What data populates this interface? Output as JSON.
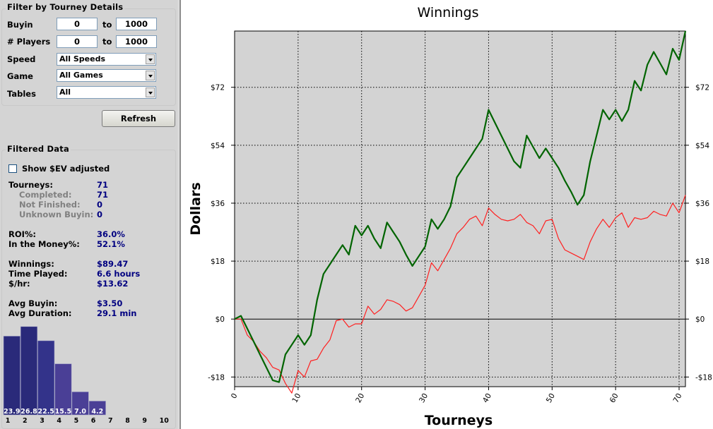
{
  "filter": {
    "title": "Filter by Tourney Details",
    "buyin_label": "Buyin",
    "buyin_min": "0",
    "buyin_max": "1000",
    "players_label": "# Players",
    "players_min": "0",
    "players_max": "1000",
    "to_label": "to",
    "speed_label": "Speed",
    "speed_value": "All Speeds",
    "game_label": "Game",
    "game_value": "All Games",
    "tables_label": "Tables",
    "tables_value": "All",
    "refresh_label": "Refresh"
  },
  "filtered": {
    "title": "Filtered Data",
    "ev_label": "Show $EV adjusted",
    "ev_checked": false,
    "stats": [
      {
        "label": "Tourneys:",
        "value": "71",
        "sub": false
      },
      {
        "label": "Completed:",
        "value": "71",
        "sub": true
      },
      {
        "label": "Not Finished:",
        "value": "0",
        "sub": true
      },
      {
        "label": "Unknown Buyin:",
        "value": "0",
        "sub": true
      },
      {
        "label": "ROI%:",
        "value": "36.0%",
        "sub": false
      },
      {
        "label": "In the Money%:",
        "value": "52.1%",
        "sub": false
      },
      {
        "label": "Winnings:",
        "value": "$89.47",
        "sub": false
      },
      {
        "label": "Time Played:",
        "value": "6.6  hours",
        "sub": false
      },
      {
        "label": "$/hr:",
        "value": "$13.62",
        "sub": false
      },
      {
        "label": "Avg Buyin:",
        "value": "$3.50",
        "sub": false
      },
      {
        "label": "Avg Duration:",
        "value": "29.1  min",
        "sub": false
      }
    ]
  },
  "histogram": {
    "places": [
      "1",
      "2",
      "3",
      "4",
      "5",
      "6",
      "7",
      "8",
      "9",
      "10"
    ],
    "values": [
      23.9,
      26.8,
      22.5,
      15.5,
      7.0,
      4.2,
      0,
      0,
      0,
      0
    ],
    "labels": [
      "23.9",
      "26.8",
      "22.5",
      "15.5",
      "7.0",
      "4.2",
      "",
      "",
      "",
      ""
    ],
    "colors": [
      "#2a2a7a",
      "#2a2a7a",
      "#33338a",
      "#4a3f96",
      "#4a3f96",
      "#4a3f96"
    ]
  },
  "chart_data": {
    "type": "line",
    "title": "Winnings",
    "xlabel": "Tourneys",
    "ylabel": "Dollars",
    "xlim": [
      0,
      71
    ],
    "ylim": [
      -21,
      89.47
    ],
    "xticks": [
      0,
      10,
      20,
      30,
      40,
      50,
      60,
      70
    ],
    "yticks": [
      -18,
      0,
      18,
      36,
      54,
      72
    ],
    "ytick_labels": [
      "-$18",
      "$0",
      "$18",
      "$36",
      "$54",
      "$72"
    ],
    "grid": true,
    "background": "#d3d3d3",
    "series": [
      {
        "color": "#006400",
        "values": [
          0,
          1,
          -3,
          -7,
          -11,
          -15,
          -19,
          -19.6,
          -11,
          -8,
          -5,
          -8,
          -5,
          6,
          14,
          17,
          20,
          23,
          20,
          29,
          26,
          29,
          25,
          22,
          30,
          27,
          24,
          20,
          16.5,
          19.5,
          22.5,
          31,
          28,
          31,
          35,
          44,
          47,
          50,
          53,
          56,
          65,
          61,
          57,
          53,
          49,
          47,
          57,
          53.5,
          50,
          53,
          50,
          47,
          43,
          39.5,
          35.5,
          38.5,
          49,
          57,
          65,
          62,
          65,
          61.5,
          65,
          74,
          71,
          79,
          83,
          79.5,
          76,
          84,
          80.5,
          89.47
        ]
      },
      {
        "color": "#ff2020",
        "values": [
          0,
          0,
          -5,
          -7,
          -10,
          -12,
          -15,
          -15.8,
          -20,
          -23,
          -16,
          -18,
          -13,
          -12.5,
          -9,
          -6.5,
          -0.5,
          0,
          -2.5,
          -1.5,
          -1.5,
          4,
          1.5,
          3,
          6,
          5.5,
          4.5,
          2.5,
          3.5,
          7,
          10.5,
          17.5,
          15,
          18.5,
          22,
          26.5,
          28.5,
          31,
          32,
          29,
          34.5,
          32.5,
          31,
          30.5,
          31,
          32.5,
          30,
          29,
          26.5,
          30.5,
          31,
          25,
          21.5,
          20.5,
          19.5,
          18.5,
          24,
          28,
          31,
          28.5,
          31.5,
          33,
          28.5,
          31.5,
          31,
          31.5,
          33.5,
          32.5,
          32,
          36,
          33,
          38.5
        ]
      }
    ]
  }
}
